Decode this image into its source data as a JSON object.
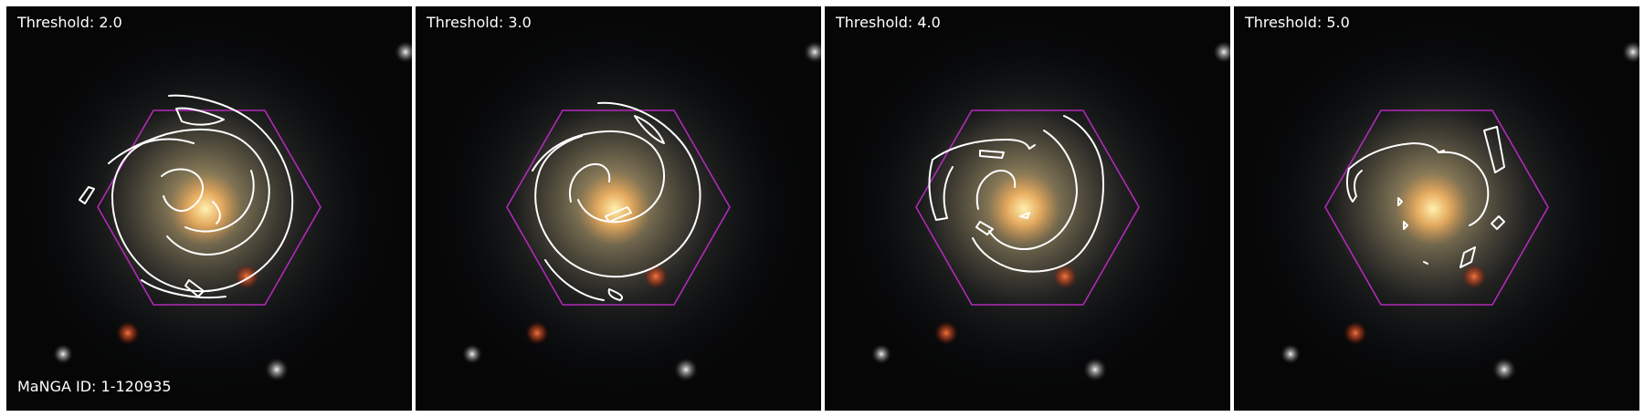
{
  "panels": [
    {
      "threshold_label": "Threshold: 2.0",
      "threshold": 2.0
    },
    {
      "threshold_label": "Threshold: 3.0",
      "threshold": 3.0
    },
    {
      "threshold_label": "Threshold: 4.0",
      "threshold": 4.0
    },
    {
      "threshold_label": "Threshold: 5.0",
      "threshold": 5.0
    }
  ],
  "manga_id_label": "MaNGA ID: 1-120935",
  "colors": {
    "hexagon": "#b02ab8",
    "contour": "#ffffff",
    "text": "#ffffff",
    "sky": "#050505",
    "core": "#ffd27a"
  }
}
